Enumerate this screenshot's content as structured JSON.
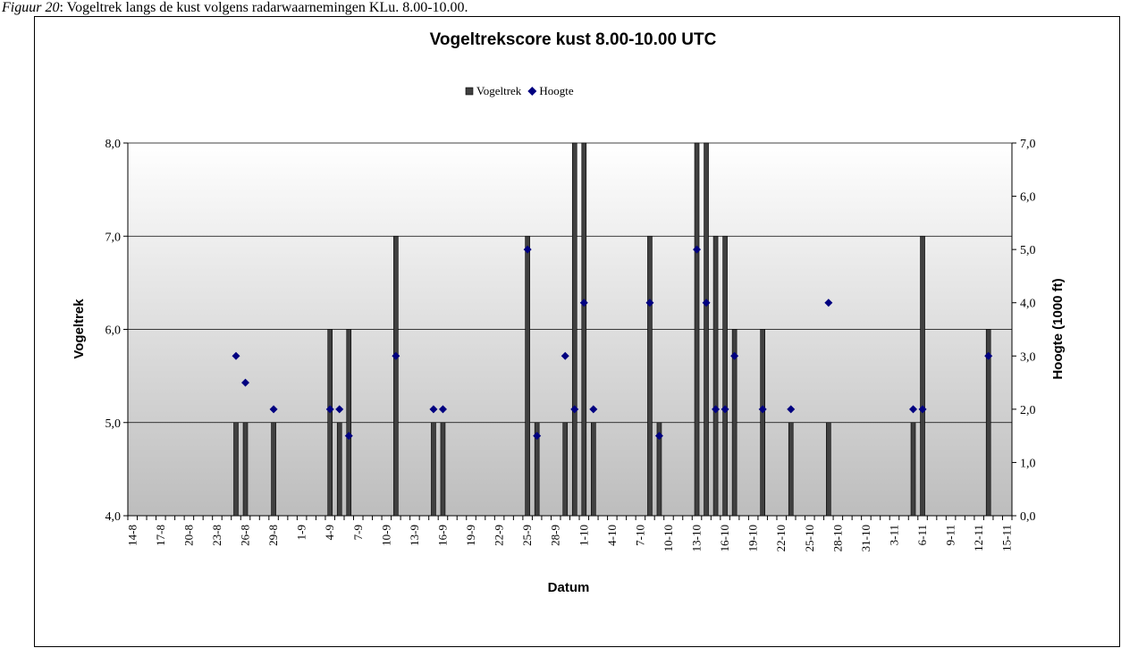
{
  "caption_label": "Figuur 20",
  "caption_text": ": Vogeltrek langs de kust volgens radarwaarnemingen KLu. 8.00-10.00.",
  "chart_data": {
    "type": "bar",
    "title": "Vogeltrekscore kust 8.00-10.00 UTC",
    "x_label": "Datum",
    "y_label": "Vogeltrek",
    "y2_label": "Hoogte (1000 ft)",
    "categories": [
      "14-8",
      null,
      null,
      "17-8",
      null,
      null,
      "20-8",
      null,
      null,
      "23-8",
      null,
      null,
      "26-8",
      null,
      null,
      "29-8",
      null,
      null,
      "1-9",
      null,
      null,
      "4-9",
      null,
      null,
      "7-9",
      null,
      null,
      "10-9",
      null,
      null,
      "13-9",
      null,
      null,
      "16-9",
      null,
      null,
      "19-9",
      null,
      null,
      "22-9",
      null,
      null,
      "25-9",
      null,
      null,
      "28-9",
      null,
      null,
      "1-10",
      null,
      null,
      "4-10",
      null,
      null,
      "7-10",
      null,
      null,
      "10-10",
      null,
      null,
      "13-10",
      null,
      null,
      "16-10",
      null,
      null,
      "19-10",
      null,
      null,
      "22-10",
      null,
      null,
      "25-10",
      null,
      null,
      "28-10",
      null,
      null,
      "31-10",
      null,
      null,
      "3-11",
      null,
      null,
      "6-11",
      null,
      null,
      "9-11",
      null,
      null,
      "12-11",
      null,
      null,
      "15-11"
    ],
    "series": [
      {
        "name": "Vogeltrek",
        "color": "#404040",
        "type": "bar",
        "values": [
          null,
          null,
          null,
          null,
          null,
          null,
          null,
          null,
          null,
          null,
          null,
          5,
          5,
          null,
          null,
          5,
          null,
          null,
          null,
          null,
          null,
          6,
          5,
          6,
          null,
          null,
          null,
          null,
          7,
          null,
          null,
          null,
          5,
          5,
          null,
          null,
          null,
          null,
          null,
          null,
          null,
          null,
          7,
          5,
          null,
          null,
          5,
          8,
          8,
          5,
          null,
          null,
          null,
          null,
          null,
          7,
          5,
          null,
          null,
          null,
          8,
          8,
          7,
          7,
          6,
          null,
          null,
          6,
          null,
          null,
          5,
          null,
          null,
          null,
          5,
          null,
          null,
          null,
          null,
          null,
          null,
          null,
          null,
          5,
          7,
          null,
          null,
          null,
          null,
          null,
          null,
          6,
          null,
          null
        ]
      },
      {
        "name": "Hoogte",
        "color": "#000080",
        "type": "scatter",
        "axis": "y2",
        "values": [
          null,
          null,
          null,
          null,
          null,
          null,
          null,
          null,
          null,
          null,
          null,
          3,
          2.5,
          null,
          null,
          2,
          null,
          null,
          null,
          null,
          null,
          2,
          2,
          1.5,
          null,
          null,
          null,
          null,
          3,
          null,
          null,
          null,
          2,
          2,
          null,
          null,
          null,
          null,
          null,
          null,
          null,
          null,
          5,
          1.5,
          null,
          null,
          3,
          2,
          4,
          2,
          null,
          null,
          null,
          null,
          null,
          4,
          1.5,
          null,
          null,
          null,
          5,
          4,
          2,
          2,
          3,
          null,
          null,
          2,
          null,
          null,
          2,
          null,
          null,
          null,
          4,
          null,
          null,
          null,
          null,
          null,
          null,
          null,
          null,
          2,
          2,
          null,
          null,
          null,
          null,
          null,
          null,
          3,
          null,
          null
        ]
      }
    ],
    "ylim": [
      4,
      8
    ],
    "yticks": [
      {
        "value": 4,
        "label": "4,0"
      },
      {
        "value": 5,
        "label": "5,0"
      },
      {
        "value": 6,
        "label": "6,0"
      },
      {
        "value": 7,
        "label": "7,0"
      },
      {
        "value": 8,
        "label": "8,0"
      }
    ],
    "y2lim": [
      0,
      7
    ],
    "y2ticks": [
      {
        "value": 0,
        "label": "0,0"
      },
      {
        "value": 1,
        "label": "1,0"
      },
      {
        "value": 2,
        "label": "2,0"
      },
      {
        "value": 3,
        "label": "3,0"
      },
      {
        "value": 4,
        "label": "4,0"
      },
      {
        "value": 5,
        "label": "5,0"
      },
      {
        "value": 6,
        "label": "6,0"
      },
      {
        "value": 7,
        "label": "7,0"
      }
    ],
    "grid": true,
    "legend": "top"
  }
}
